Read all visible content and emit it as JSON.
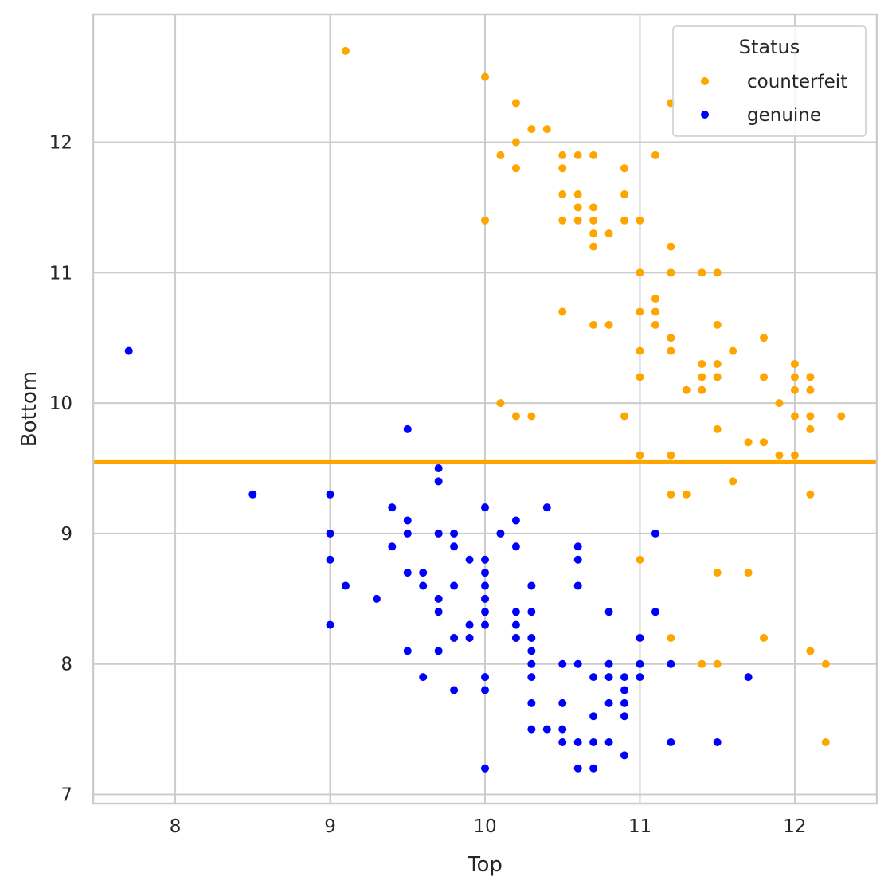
{
  "chart_data": {
    "type": "scatter",
    "xlabel": "Top",
    "ylabel": "Bottom",
    "xlim": [
      7.47,
      12.53
    ],
    "ylim": [
      6.93,
      12.98
    ],
    "xticks": [
      8,
      9,
      10,
      11,
      12
    ],
    "yticks": [
      7,
      8,
      9,
      10,
      11,
      12
    ],
    "grid": true,
    "legend": {
      "title": "Status",
      "position": "top-right"
    },
    "hline": {
      "y": 9.55,
      "color": "#ffa500"
    },
    "series": [
      {
        "name": "counterfeit",
        "color": "#ffa500",
        "points": [
          [
            9.1,
            12.7
          ],
          [
            10.0,
            12.5
          ],
          [
            10.2,
            12.3
          ],
          [
            11.2,
            12.3
          ],
          [
            10.3,
            12.1
          ],
          [
            10.4,
            12.1
          ],
          [
            10.2,
            12.0
          ],
          [
            10.1,
            11.9
          ],
          [
            10.5,
            11.9
          ],
          [
            10.6,
            11.9
          ],
          [
            10.7,
            11.9
          ],
          [
            11.1,
            11.9
          ],
          [
            10.2,
            11.8
          ],
          [
            10.5,
            11.8
          ],
          [
            10.9,
            11.8
          ],
          [
            10.5,
            11.6
          ],
          [
            10.6,
            11.6
          ],
          [
            10.9,
            11.6
          ],
          [
            10.6,
            11.5
          ],
          [
            10.7,
            11.5
          ],
          [
            10.0,
            11.4
          ],
          [
            10.5,
            11.4
          ],
          [
            10.6,
            11.4
          ],
          [
            10.7,
            11.4
          ],
          [
            10.9,
            11.4
          ],
          [
            11.0,
            11.4
          ],
          [
            10.7,
            11.3
          ],
          [
            10.8,
            11.3
          ],
          [
            10.7,
            11.2
          ],
          [
            11.2,
            11.2
          ],
          [
            11.0,
            11.0
          ],
          [
            11.2,
            11.0
          ],
          [
            11.4,
            11.0
          ],
          [
            11.5,
            11.0
          ],
          [
            11.1,
            10.8
          ],
          [
            10.5,
            10.7
          ],
          [
            11.0,
            10.7
          ],
          [
            11.1,
            10.7
          ],
          [
            10.7,
            10.6
          ],
          [
            10.8,
            10.6
          ],
          [
            11.1,
            10.6
          ],
          [
            11.5,
            10.6
          ],
          [
            11.2,
            10.5
          ],
          [
            11.8,
            10.5
          ],
          [
            11.0,
            10.4
          ],
          [
            11.2,
            10.4
          ],
          [
            11.6,
            10.4
          ],
          [
            11.4,
            10.3
          ],
          [
            11.5,
            10.3
          ],
          [
            12.0,
            10.3
          ],
          [
            11.0,
            10.2
          ],
          [
            11.4,
            10.2
          ],
          [
            11.5,
            10.2
          ],
          [
            11.8,
            10.2
          ],
          [
            12.0,
            10.2
          ],
          [
            12.1,
            10.2
          ],
          [
            11.3,
            10.1
          ],
          [
            11.4,
            10.1
          ],
          [
            12.0,
            10.1
          ],
          [
            12.1,
            10.1
          ],
          [
            10.1,
            10.0
          ],
          [
            11.9,
            10.0
          ],
          [
            10.2,
            9.9
          ],
          [
            10.3,
            9.9
          ],
          [
            10.9,
            9.9
          ],
          [
            12.0,
            9.9
          ],
          [
            12.1,
            9.9
          ],
          [
            12.3,
            9.9
          ],
          [
            11.5,
            9.8
          ],
          [
            12.1,
            9.8
          ],
          [
            11.7,
            9.7
          ],
          [
            11.8,
            9.7
          ],
          [
            11.0,
            9.6
          ],
          [
            11.2,
            9.6
          ],
          [
            11.9,
            9.6
          ],
          [
            12.0,
            9.6
          ],
          [
            11.6,
            9.4
          ],
          [
            11.2,
            9.3
          ],
          [
            11.3,
            9.3
          ],
          [
            12.1,
            9.3
          ],
          [
            11.0,
            8.8
          ],
          [
            11.5,
            8.7
          ],
          [
            11.7,
            8.7
          ],
          [
            11.2,
            8.2
          ],
          [
            11.8,
            8.2
          ],
          [
            12.1,
            8.1
          ],
          [
            11.4,
            8.0
          ],
          [
            11.5,
            8.0
          ],
          [
            12.2,
            8.0
          ],
          [
            12.2,
            7.4
          ]
        ]
      },
      {
        "name": "genuine",
        "color": "#0000ff",
        "points": [
          [
            7.7,
            10.4
          ],
          [
            9.5,
            9.8
          ],
          [
            9.7,
            9.5
          ],
          [
            9.7,
            9.4
          ],
          [
            8.5,
            9.3
          ],
          [
            9.0,
            9.3
          ],
          [
            9.4,
            9.2
          ],
          [
            10.0,
            9.2
          ],
          [
            10.4,
            9.2
          ],
          [
            9.5,
            9.1
          ],
          [
            10.2,
            9.1
          ],
          [
            9.0,
            9.0
          ],
          [
            9.5,
            9.0
          ],
          [
            9.7,
            9.0
          ],
          [
            9.8,
            9.0
          ],
          [
            10.1,
            9.0
          ],
          [
            11.1,
            9.0
          ],
          [
            9.4,
            8.9
          ],
          [
            9.8,
            8.9
          ],
          [
            10.2,
            8.9
          ],
          [
            10.6,
            8.9
          ],
          [
            9.0,
            8.8
          ],
          [
            9.9,
            8.8
          ],
          [
            10.0,
            8.8
          ],
          [
            10.6,
            8.8
          ],
          [
            9.5,
            8.7
          ],
          [
            9.6,
            8.7
          ],
          [
            10.0,
            8.7
          ],
          [
            9.1,
            8.6
          ],
          [
            9.6,
            8.6
          ],
          [
            9.8,
            8.6
          ],
          [
            10.0,
            8.6
          ],
          [
            10.3,
            8.6
          ],
          [
            10.6,
            8.6
          ],
          [
            9.3,
            8.5
          ],
          [
            9.7,
            8.5
          ],
          [
            10.0,
            8.5
          ],
          [
            9.7,
            8.4
          ],
          [
            10.0,
            8.4
          ],
          [
            10.2,
            8.4
          ],
          [
            10.3,
            8.4
          ],
          [
            10.8,
            8.4
          ],
          [
            11.1,
            8.4
          ],
          [
            9.0,
            8.3
          ],
          [
            9.9,
            8.3
          ],
          [
            10.0,
            8.3
          ],
          [
            10.2,
            8.3
          ],
          [
            9.8,
            8.2
          ],
          [
            9.9,
            8.2
          ],
          [
            10.2,
            8.2
          ],
          [
            10.3,
            8.2
          ],
          [
            11.0,
            8.2
          ],
          [
            9.5,
            8.1
          ],
          [
            9.7,
            8.1
          ],
          [
            10.3,
            8.1
          ],
          [
            10.3,
            8.0
          ],
          [
            10.5,
            8.0
          ],
          [
            10.6,
            8.0
          ],
          [
            10.8,
            8.0
          ],
          [
            11.0,
            8.0
          ],
          [
            11.2,
            8.0
          ],
          [
            9.6,
            7.9
          ],
          [
            10.0,
            7.9
          ],
          [
            10.3,
            7.9
          ],
          [
            10.7,
            7.9
          ],
          [
            10.8,
            7.9
          ],
          [
            10.9,
            7.9
          ],
          [
            11.0,
            7.9
          ],
          [
            11.7,
            7.9
          ],
          [
            9.8,
            7.8
          ],
          [
            10.0,
            7.8
          ],
          [
            10.9,
            7.8
          ],
          [
            10.3,
            7.7
          ],
          [
            10.5,
            7.7
          ],
          [
            10.8,
            7.7
          ],
          [
            10.9,
            7.7
          ],
          [
            10.7,
            7.6
          ],
          [
            10.9,
            7.6
          ],
          [
            10.3,
            7.5
          ],
          [
            10.4,
            7.5
          ],
          [
            10.5,
            7.5
          ],
          [
            10.5,
            7.4
          ],
          [
            10.6,
            7.4
          ],
          [
            10.7,
            7.4
          ],
          [
            10.8,
            7.4
          ],
          [
            11.2,
            7.4
          ],
          [
            11.5,
            7.4
          ],
          [
            10.9,
            7.3
          ],
          [
            10.0,
            7.2
          ],
          [
            10.6,
            7.2
          ],
          [
            10.7,
            7.2
          ]
        ]
      }
    ]
  }
}
